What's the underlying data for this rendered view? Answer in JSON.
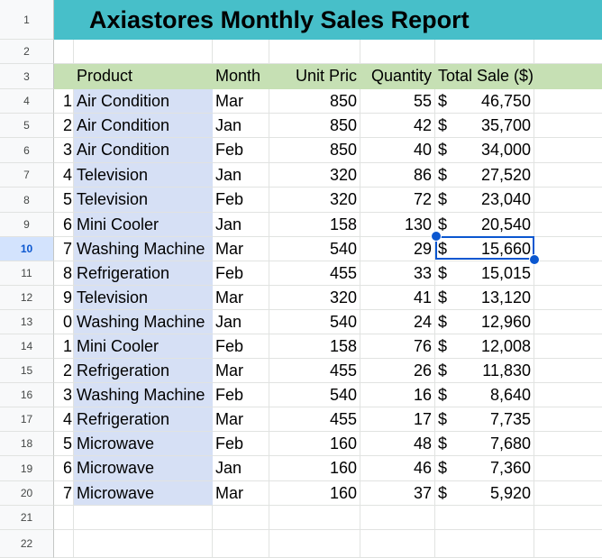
{
  "title": "Axiastores Monthly Sales Report",
  "row_numbers": [
    "1",
    "2",
    "3",
    "4",
    "5",
    "6",
    "7",
    "8",
    "9",
    "10",
    "11",
    "12",
    "13",
    "14",
    "15",
    "16",
    "17",
    "18",
    "19",
    "20",
    "21",
    "22"
  ],
  "selected_row": "10",
  "headers": {
    "product": "Product",
    "month": "Month",
    "unit_price": "Unit Pric",
    "quantity": "Quantity",
    "total_sale": "Total Sale ($)"
  },
  "rows": [
    {
      "idx": "1",
      "product": "Air Condition",
      "month": "Mar",
      "price": "850",
      "qty": "55",
      "cur": "$",
      "total": "46,750"
    },
    {
      "idx": "2",
      "product": "Air Condition",
      "month": "Jan",
      "price": "850",
      "qty": "42",
      "cur": "$",
      "total": "35,700"
    },
    {
      "idx": "3",
      "product": "Air Condition",
      "month": "Feb",
      "price": "850",
      "qty": "40",
      "cur": "$",
      "total": "34,000"
    },
    {
      "idx": "4",
      "product": "Television",
      "month": "Jan",
      "price": "320",
      "qty": "86",
      "cur": "$",
      "total": "27,520"
    },
    {
      "idx": "5",
      "product": "Television",
      "month": "Feb",
      "price": "320",
      "qty": "72",
      "cur": "$",
      "total": "23,040"
    },
    {
      "idx": "6",
      "product": "Mini Cooler",
      "month": "Jan",
      "price": "158",
      "qty": "130",
      "cur": "$",
      "total": "20,540"
    },
    {
      "idx": "7",
      "product": "Washing Machine",
      "month": "Mar",
      "price": "540",
      "qty": "29",
      "cur": "$",
      "total": "15,660"
    },
    {
      "idx": "8",
      "product": "Refrigeration",
      "month": "Feb",
      "price": "455",
      "qty": "33",
      "cur": "$",
      "total": "15,015"
    },
    {
      "idx": "9",
      "product": "Television",
      "month": "Mar",
      "price": "320",
      "qty": "41",
      "cur": "$",
      "total": "13,120"
    },
    {
      "idx": "0",
      "product": "Washing Machine",
      "month": "Jan",
      "price": "540",
      "qty": "24",
      "cur": "$",
      "total": "12,960"
    },
    {
      "idx": "1",
      "product": "Mini Cooler",
      "month": "Feb",
      "price": "158",
      "qty": "76",
      "cur": "$",
      "total": "12,008"
    },
    {
      "idx": "2",
      "product": "Refrigeration",
      "month": "Mar",
      "price": "455",
      "qty": "26",
      "cur": "$",
      "total": "11,830"
    },
    {
      "idx": "3",
      "product": "Washing Machine",
      "month": "Feb",
      "price": "540",
      "qty": "16",
      "cur": "$",
      "total": "8,640"
    },
    {
      "idx": "4",
      "product": "Refrigeration",
      "month": "Mar",
      "price": "455",
      "qty": "17",
      "cur": "$",
      "total": "7,735"
    },
    {
      "idx": "5",
      "product": "Microwave",
      "month": "Feb",
      "price": "160",
      "qty": "48",
      "cur": "$",
      "total": "7,680"
    },
    {
      "idx": "6",
      "product": "Microwave",
      "month": "Jan",
      "price": "160",
      "qty": "46",
      "cur": "$",
      "total": "7,360"
    },
    {
      "idx": "7",
      "product": "Microwave",
      "month": "Mar",
      "price": "160",
      "qty": "37",
      "cur": "$",
      "total": "5,920"
    }
  ],
  "colors": {
    "title_band": "#47bfc9",
    "header_band": "#c6e0b4",
    "product_col": "#d6e0f5",
    "selection": "#0b57d0"
  }
}
